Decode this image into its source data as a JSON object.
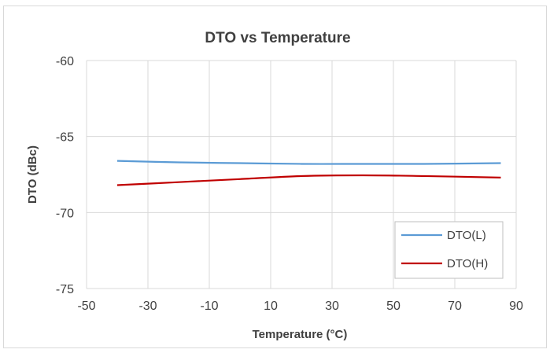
{
  "chart_data": {
    "type": "line",
    "title": "DTO vs Temperature",
    "xlabel": "Temperature (°C)",
    "ylabel": "DTO (dBc)",
    "xlim": [
      -50,
      90
    ],
    "ylim": [
      -75,
      -60
    ],
    "xticks": [
      "-50",
      "-30",
      "-10",
      "10",
      "30",
      "50",
      "70",
      "90"
    ],
    "yticks": [
      "-60",
      "-65",
      "-70",
      "-75"
    ],
    "grid": true,
    "legend_position": "bottom-right",
    "series": [
      {
        "name": "DTO(L)",
        "color": "#5b9bd5",
        "x": [
          -40,
          -20,
          0,
          20,
          40,
          60,
          85
        ],
        "y": [
          -66.6,
          -66.7,
          -66.75,
          -66.8,
          -66.8,
          -66.8,
          -66.75
        ]
      },
      {
        "name": "DTO(H)",
        "color": "#c00000",
        "x": [
          -40,
          -20,
          0,
          20,
          40,
          60,
          85
        ],
        "y": [
          -68.2,
          -68.0,
          -67.8,
          -67.6,
          -67.55,
          -67.6,
          -67.7
        ]
      }
    ]
  }
}
